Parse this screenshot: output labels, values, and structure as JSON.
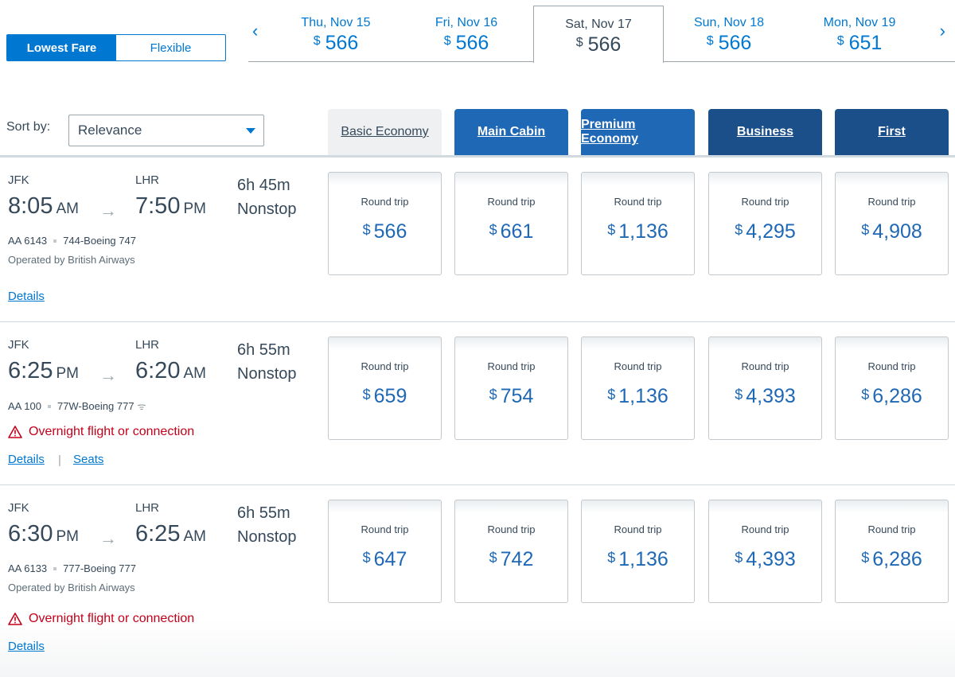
{
  "fare_toggle": {
    "options": [
      "Lowest Fare",
      "Flexible"
    ],
    "selected": "Lowest Fare"
  },
  "dates": {
    "prev_icon": "chevron-left-icon",
    "next_icon": "chevron-right-icon",
    "prev_glyph": "‹",
    "next_glyph": "›",
    "items": [
      {
        "label": "Thu, Nov 15",
        "currency": "$",
        "price": "566"
      },
      {
        "label": "Fri, Nov 16",
        "currency": "$",
        "price": "566"
      },
      {
        "label": "Sat, Nov 17",
        "currency": "$",
        "price": "566",
        "selected": true
      },
      {
        "label": "Sun, Nov 18",
        "currency": "$",
        "price": "566"
      },
      {
        "label": "Mon, Nov 19",
        "currency": "$",
        "price": "651"
      }
    ]
  },
  "sort": {
    "label": "Sort by:",
    "value": "Relevance"
  },
  "cabins": [
    "Basic Economy",
    "Main Cabin",
    "Premium Economy",
    "Business",
    "First"
  ],
  "colors": {
    "accent": "#0078d2",
    "dark_blue": "#1b4f8a",
    "mid_blue": "#1f68b5",
    "warning": "#c30019"
  },
  "arrow_glyph": "→",
  "flights": [
    {
      "origin": "JFK",
      "dep_time": "8:05",
      "dep_ampm": "AM",
      "destination": "LHR",
      "arr_time": "7:50",
      "arr_ampm": "PM",
      "duration": "6h 45m",
      "stops": "Nonstop",
      "flight_no": "AA 6143",
      "aircraft": "744-Boeing 747",
      "operated_by": "Operated by British Airways",
      "details_link": "Details",
      "prices": [
        {
          "label": "Round trip",
          "currency": "$",
          "amount": "566"
        },
        {
          "label": "Round trip",
          "currency": "$",
          "amount": "661"
        },
        {
          "label": "Round trip",
          "currency": "$",
          "amount": "1,136"
        },
        {
          "label": "Round trip",
          "currency": "$",
          "amount": "4,295"
        },
        {
          "label": "Round trip",
          "currency": "$",
          "amount": "4,908"
        }
      ]
    },
    {
      "origin": "JFK",
      "dep_time": "6:25",
      "dep_ampm": "PM",
      "destination": "LHR",
      "arr_time": "6:20",
      "arr_ampm": "AM",
      "duration": "6h 55m",
      "stops": "Nonstop",
      "flight_no": "AA 100",
      "aircraft": "77W-Boeing 777",
      "wifi_icon": "wifi-icon",
      "wifi_glyph": "ᯤ",
      "warning": "Overnight flight or connection",
      "details_link": "Details",
      "seats_link": "Seats",
      "separator": "|",
      "prices": [
        {
          "label": "Round trip",
          "currency": "$",
          "amount": "659"
        },
        {
          "label": "Round trip",
          "currency": "$",
          "amount": "754"
        },
        {
          "label": "Round trip",
          "currency": "$",
          "amount": "1,136"
        },
        {
          "label": "Round trip",
          "currency": "$",
          "amount": "4,393"
        },
        {
          "label": "Round trip",
          "currency": "$",
          "amount": "6,286"
        }
      ]
    },
    {
      "origin": "JFK",
      "dep_time": "6:30",
      "dep_ampm": "PM",
      "destination": "LHR",
      "arr_time": "6:25",
      "arr_ampm": "AM",
      "duration": "6h 55m",
      "stops": "Nonstop",
      "flight_no": "AA 6133",
      "aircraft": "777-Boeing 777",
      "operated_by": "Operated by British Airways",
      "warning": "Overnight flight or connection",
      "details_link": "Details",
      "prices": [
        {
          "label": "Round trip",
          "currency": "$",
          "amount": "647"
        },
        {
          "label": "Round trip",
          "currency": "$",
          "amount": "742"
        },
        {
          "label": "Round trip",
          "currency": "$",
          "amount": "1,136"
        },
        {
          "label": "Round trip",
          "currency": "$",
          "amount": "4,393"
        },
        {
          "label": "Round trip",
          "currency": "$",
          "amount": "6,286"
        }
      ]
    }
  ]
}
